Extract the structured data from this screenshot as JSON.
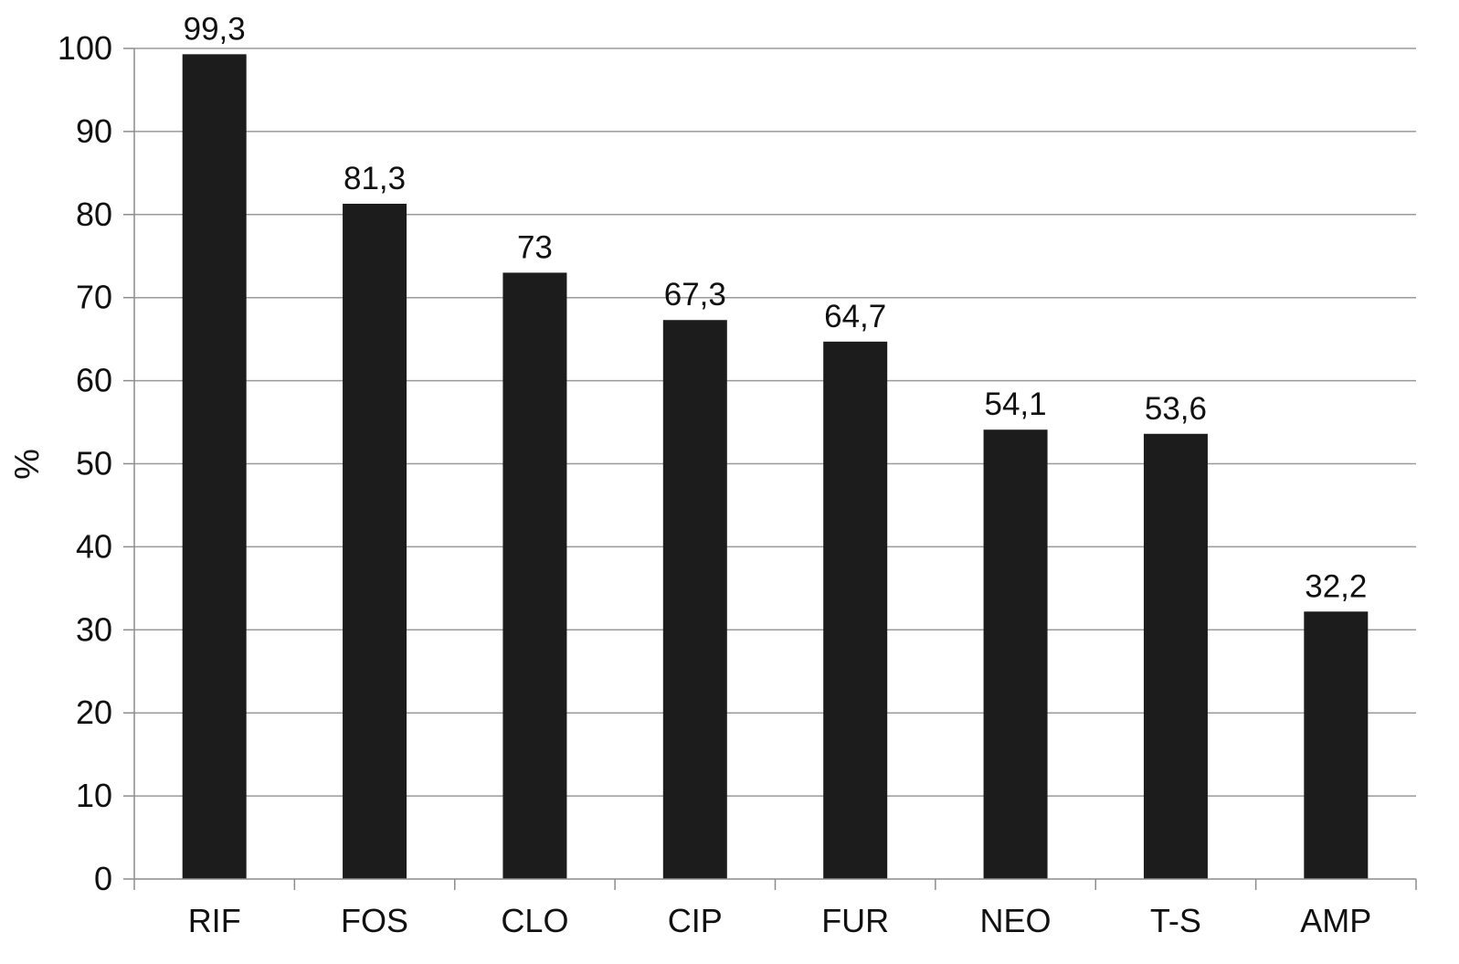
{
  "chart_data": {
    "type": "bar",
    "categories": [
      "RIF",
      "FOS",
      "CLO",
      "CIP",
      "FUR",
      "NEO",
      "T-S",
      "AMP"
    ],
    "values": [
      99.3,
      81.3,
      73,
      67.3,
      64.7,
      54.1,
      53.6,
      32.2
    ],
    "value_labels": [
      "99,3",
      "81,3",
      "73",
      "67,3",
      "64,7",
      "54,1",
      "53,6",
      "32,2"
    ],
    "ylabel": "%",
    "ylim": [
      0,
      100
    ],
    "yticks": [
      0,
      10,
      20,
      30,
      40,
      50,
      60,
      70,
      80,
      90,
      100
    ],
    "ytick_labels": [
      "0",
      "10",
      "20",
      "30",
      "40",
      "50",
      "60",
      "70",
      "80",
      "90",
      "100"
    ],
    "grid": true,
    "legend": "none",
    "colors": {
      "bar": "#1c1c1c",
      "grid": "#9a9a9a",
      "axis": "#8c8c8c",
      "text": "#111111"
    }
  }
}
